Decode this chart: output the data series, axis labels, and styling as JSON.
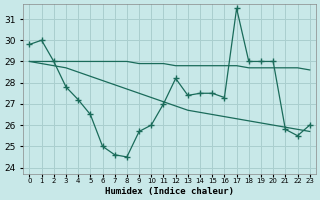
{
  "xlabel": "Humidex (Indice chaleur)",
  "x": [
    0,
    1,
    2,
    3,
    4,
    5,
    6,
    7,
    8,
    9,
    10,
    11,
    12,
    13,
    14,
    15,
    16,
    17,
    18,
    19,
    20,
    21,
    22,
    23
  ],
  "y_main": [
    29.8,
    30.0,
    29.0,
    27.8,
    27.2,
    26.5,
    25.0,
    24.6,
    24.5,
    25.7,
    26.0,
    27.0,
    28.2,
    27.4,
    27.5,
    27.5,
    27.3,
    31.5,
    29.0,
    29.0,
    29.0,
    25.8,
    25.5,
    26.0
  ],
  "y_trend1": [
    29.0,
    29.0,
    29.0,
    29.0,
    29.0,
    29.0,
    29.0,
    29.0,
    29.0,
    28.9,
    28.9,
    28.9,
    28.8,
    28.8,
    28.8,
    28.8,
    28.8,
    28.8,
    28.7,
    28.7,
    28.7,
    28.7,
    28.7,
    28.6
  ],
  "y_trend2": [
    29.0,
    28.9,
    28.8,
    28.7,
    28.5,
    28.3,
    28.1,
    27.9,
    27.7,
    27.5,
    27.3,
    27.1,
    26.9,
    26.7,
    26.6,
    26.5,
    26.4,
    26.3,
    26.2,
    26.1,
    26.0,
    25.9,
    25.8,
    25.7
  ],
  "line_color": "#1a6b5a",
  "bg_color": "#c8e8e8",
  "grid_color": "#aacece",
  "ylim": [
    23.7,
    31.7
  ],
  "yticks": [
    24,
    25,
    26,
    27,
    28,
    29,
    30,
    31
  ],
  "xlim": [
    -0.5,
    23.5
  ],
  "xtick_labels": [
    "0",
    "1",
    "2",
    "3",
    "4",
    "5",
    "6",
    "7",
    "8",
    "9",
    "1011",
    "1213",
    "1415",
    "1617",
    "1819",
    "2021",
    "2223"
  ]
}
